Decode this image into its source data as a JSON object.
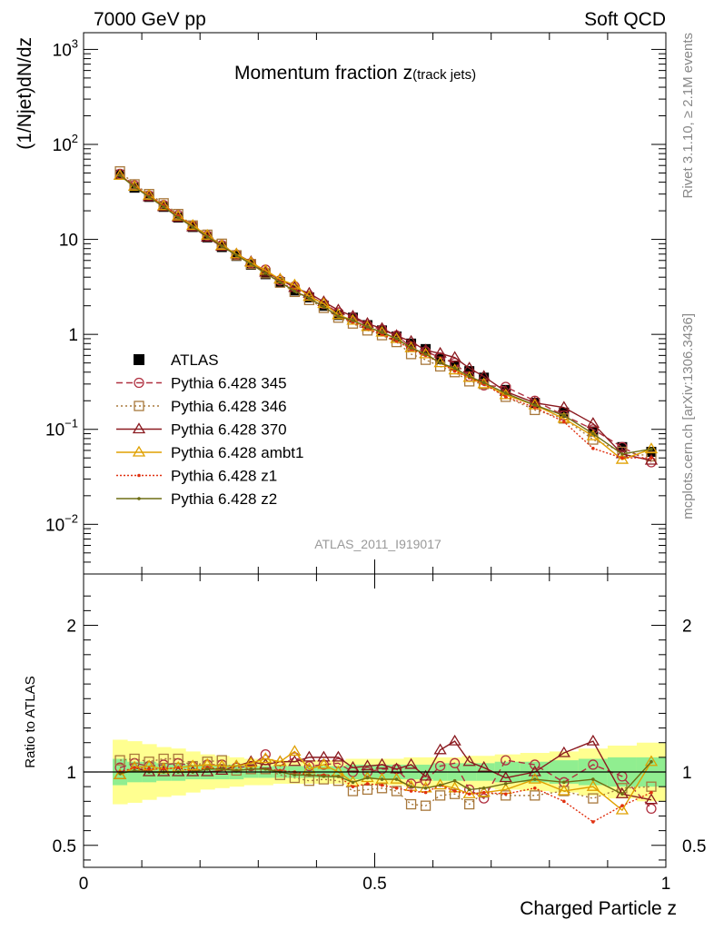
{
  "header": {
    "left": "7000 GeV pp",
    "right": "Soft QCD"
  },
  "side_labels": {
    "rivet": "Rivet 3.1.10, ≥ 2.1M events",
    "mcplots": "mcplots.cern.ch [arXiv:1306.3436]"
  },
  "analysis_label": "ATLAS_2011_I919017",
  "colors": {
    "ATLAS": "#000000",
    "p345": "#b03040",
    "p346": "#a8783c",
    "p370": "#8b1a20",
    "ambt1": "#e0a000",
    "z1": "#e03010",
    "z2": "#6e6e14",
    "band_inner": "#90ee90",
    "band_outer": "#ffff90"
  },
  "chart_data": [
    {
      "type": "line",
      "title": "Momentum fraction z",
      "title_sub": "(track jets)",
      "ylabel": "(1/Njet)dN/dz",
      "yscale": "log",
      "ylim": [
        0.003,
        1500
      ],
      "xlim": [
        0,
        1
      ],
      "yticks": [
        {
          "v": 0.01,
          "base": "10",
          "exp": "−2"
        },
        {
          "v": 0.1,
          "base": "10",
          "exp": "−1"
        },
        {
          "v": 1,
          "base": "1",
          "exp": ""
        },
        {
          "v": 10,
          "base": "10",
          "exp": ""
        },
        {
          "v": 100,
          "base": "10",
          "exp": "2"
        },
        {
          "v": 1000,
          "base": "10",
          "exp": "3"
        }
      ],
      "x": [
        0.0625,
        0.0875,
        0.1125,
        0.1375,
        0.1625,
        0.1875,
        0.2125,
        0.2375,
        0.2625,
        0.2875,
        0.3125,
        0.3375,
        0.3625,
        0.3875,
        0.4125,
        0.4375,
        0.4625,
        0.4875,
        0.5125,
        0.5375,
        0.5625,
        0.5875,
        0.6125,
        0.6375,
        0.6625,
        0.6875,
        0.725,
        0.775,
        0.825,
        0.875,
        0.925,
        0.975
      ],
      "series": [
        {
          "name": "ATLAS",
          "key": "ATLAS",
          "marker": "square-filled",
          "dash": "none",
          "values": [
            48,
            35,
            28,
            22,
            17,
            13.5,
            10.5,
            8.3,
            6.7,
            5.4,
            4.3,
            3.55,
            2.9,
            2.45,
            2.0,
            1.6,
            1.5,
            1.25,
            1.1,
            0.95,
            0.8,
            0.7,
            0.55,
            0.47,
            0.41,
            0.35,
            0.26,
            0.19,
            0.15,
            0.095,
            0.065,
            0.058
          ]
        },
        {
          "name": "Pythia 6.428 345",
          "key": "p345",
          "marker": "circle-open",
          "dash": "7,4",
          "values": [
            49,
            37,
            29,
            23,
            18,
            14,
            11,
            8.7,
            6.9,
            5.6,
            4.8,
            3.7,
            3.2,
            2.55,
            2.1,
            1.7,
            1.5,
            1.25,
            1.12,
            0.97,
            0.74,
            0.66,
            0.57,
            0.5,
            0.36,
            0.29,
            0.28,
            0.2,
            0.14,
            0.1,
            0.065,
            0.045
          ]
        },
        {
          "name": "Pythia 6.428 346",
          "key": "p346",
          "marker": "square-open",
          "dash": "2,3",
          "values": [
            52,
            38,
            30,
            24,
            18.5,
            14,
            11.2,
            9.0,
            6.8,
            5.5,
            4.4,
            3.5,
            2.8,
            2.3,
            1.9,
            1.5,
            1.3,
            1.1,
            0.98,
            0.83,
            0.62,
            0.54,
            0.46,
            0.4,
            0.32,
            0.3,
            0.22,
            0.16,
            0.13,
            0.078,
            0.058,
            0.052
          ]
        },
        {
          "name": "Pythia 6.428 370",
          "key": "p370",
          "marker": "triangle-open",
          "dash": "none",
          "values": [
            47,
            36,
            28,
            22,
            17,
            13.5,
            10.5,
            8.4,
            7.0,
            5.8,
            4.5,
            3.8,
            3.1,
            2.7,
            2.2,
            1.8,
            1.55,
            1.3,
            1.15,
            0.97,
            0.84,
            0.68,
            0.63,
            0.57,
            0.44,
            0.36,
            0.25,
            0.19,
            0.17,
            0.115,
            0.055,
            0.047
          ]
        },
        {
          "name": "Pythia 6.428 ambt1",
          "key": "ambt1",
          "marker": "triangle-open",
          "dash": "none",
          "values": [
            47,
            36,
            29,
            22.5,
            17.5,
            14,
            11,
            8.6,
            7.0,
            5.7,
            4.7,
            3.8,
            3.3,
            2.5,
            2.1,
            1.6,
            1.4,
            1.2,
            1.05,
            0.9,
            0.72,
            0.62,
            0.5,
            0.42,
            0.35,
            0.3,
            0.23,
            0.18,
            0.13,
            0.085,
            0.048,
            0.062
          ]
        },
        {
          "name": "Pythia 6.428 z1",
          "key": "z1",
          "marker": "dot",
          "dash": "2,2",
          "values": [
            48,
            36,
            28.5,
            22.5,
            17.5,
            13.5,
            10.8,
            8.5,
            6.8,
            5.5,
            4.4,
            3.6,
            2.9,
            2.4,
            1.95,
            1.55,
            1.35,
            1.15,
            1.0,
            0.85,
            0.7,
            0.6,
            0.5,
            0.41,
            0.35,
            0.3,
            0.22,
            0.17,
            0.12,
            0.063,
            0.05,
            0.05
          ]
        },
        {
          "name": "Pythia 6.428 z2",
          "key": "z2",
          "marker": "dot",
          "dash": "none",
          "values": [
            47.5,
            35.5,
            28,
            22,
            17,
            13.5,
            10.7,
            8.5,
            6.8,
            5.5,
            4.4,
            3.55,
            2.85,
            2.4,
            1.95,
            1.55,
            1.4,
            1.2,
            1.05,
            0.9,
            0.72,
            0.62,
            0.5,
            0.44,
            0.36,
            0.31,
            0.24,
            0.18,
            0.14,
            0.09,
            0.055,
            0.062
          ]
        }
      ]
    },
    {
      "type": "line",
      "ylabel": "Ratio to ATLAS",
      "xlabel": "Charged Particle z",
      "ylim": [
        0.35,
        2.35
      ],
      "xlim": [
        0,
        1
      ],
      "xticks": [
        {
          "v": 0,
          "label": "0"
        },
        {
          "v": 0.5,
          "label": "0.5"
        },
        {
          "v": 1,
          "label": "1"
        }
      ],
      "yticks": [
        {
          "v": 0.5,
          "label": "0.5"
        },
        {
          "v": 1,
          "label": "1"
        },
        {
          "v": 2,
          "label": "2"
        }
      ],
      "band_inner": [
        0.09,
        0.07,
        0.07,
        0.06,
        0.06,
        0.05,
        0.05,
        0.05,
        0.05,
        0.04,
        0.04,
        0.04,
        0.04,
        0.04,
        0.04,
        0.04,
        0.05,
        0.05,
        0.05,
        0.05,
        0.05,
        0.05,
        0.06,
        0.06,
        0.06,
        0.06,
        0.07,
        0.07,
        0.08,
        0.09,
        0.1,
        0.1
      ],
      "band_outer": [
        0.22,
        0.21,
        0.19,
        0.17,
        0.16,
        0.14,
        0.12,
        0.11,
        0.1,
        0.09,
        0.09,
        0.08,
        0.08,
        0.08,
        0.08,
        0.08,
        0.09,
        0.09,
        0.09,
        0.09,
        0.1,
        0.1,
        0.1,
        0.1,
        0.11,
        0.11,
        0.12,
        0.13,
        0.14,
        0.16,
        0.18,
        0.2
      ],
      "series": [
        {
          "key": "p345",
          "values": [
            1.03,
            1.06,
            1.04,
            1.05,
            1.06,
            1.04,
            1.05,
            1.05,
            1.03,
            1.04,
            1.12,
            1.04,
            1.1,
            1.04,
            1.05,
            1.06,
            1.0,
            1.0,
            1.02,
            1.02,
            0.92,
            0.94,
            1.04,
            1.06,
            0.88,
            0.82,
            1.08,
            1.05,
            0.93,
            1.05,
            0.97,
            0.75
          ]
        },
        {
          "key": "p346",
          "values": [
            1.08,
            1.09,
            1.07,
            1.09,
            1.09,
            1.04,
            1.07,
            1.08,
            1.01,
            1.02,
            1.02,
            0.98,
            0.96,
            0.94,
            0.95,
            0.94,
            0.87,
            0.88,
            0.89,
            0.87,
            0.78,
            0.77,
            0.84,
            0.85,
            0.78,
            0.86,
            0.84,
            0.84,
            0.87,
            0.82,
            0.89,
            0.9
          ]
        },
        {
          "key": "p370",
          "values": [
            0.98,
            1.03,
            1.0,
            1.0,
            1.0,
            1.0,
            1.0,
            1.01,
            1.04,
            1.07,
            1.05,
            1.07,
            1.07,
            1.1,
            1.1,
            1.1,
            1.03,
            1.04,
            1.05,
            1.02,
            1.05,
            0.97,
            1.15,
            1.21,
            1.07,
            1.03,
            0.96,
            1.0,
            1.13,
            1.21,
            0.85,
            0.81
          ]
        },
        {
          "key": "ambt1",
          "values": [
            0.98,
            1.03,
            1.04,
            1.02,
            1.03,
            1.04,
            1.05,
            1.04,
            1.04,
            1.06,
            1.09,
            1.07,
            1.14,
            1.02,
            1.05,
            1.0,
            0.93,
            0.96,
            0.95,
            0.95,
            0.9,
            0.89,
            0.91,
            0.89,
            0.85,
            0.86,
            0.88,
            0.95,
            0.87,
            0.9,
            0.74,
            1.07
          ]
        },
        {
          "key": "z1",
          "values": [
            1.0,
            1.03,
            1.02,
            1.02,
            1.03,
            1.0,
            1.03,
            1.02,
            1.01,
            1.02,
            1.02,
            1.01,
            1.0,
            0.98,
            0.98,
            0.97,
            0.9,
            0.92,
            0.91,
            0.89,
            0.87,
            0.86,
            0.91,
            0.87,
            0.85,
            0.86,
            0.85,
            0.89,
            0.8,
            0.66,
            0.77,
            0.86
          ]
        },
        {
          "key": "z2",
          "values": [
            0.99,
            1.01,
            1.0,
            1.0,
            1.0,
            1.0,
            1.02,
            1.02,
            1.01,
            1.02,
            1.02,
            1.0,
            0.98,
            0.98,
            0.97,
            0.97,
            0.93,
            0.96,
            0.95,
            0.95,
            0.9,
            0.89,
            0.91,
            0.94,
            0.88,
            0.89,
            0.92,
            0.95,
            0.93,
            0.95,
            0.85,
            1.07
          ]
        }
      ]
    }
  ]
}
